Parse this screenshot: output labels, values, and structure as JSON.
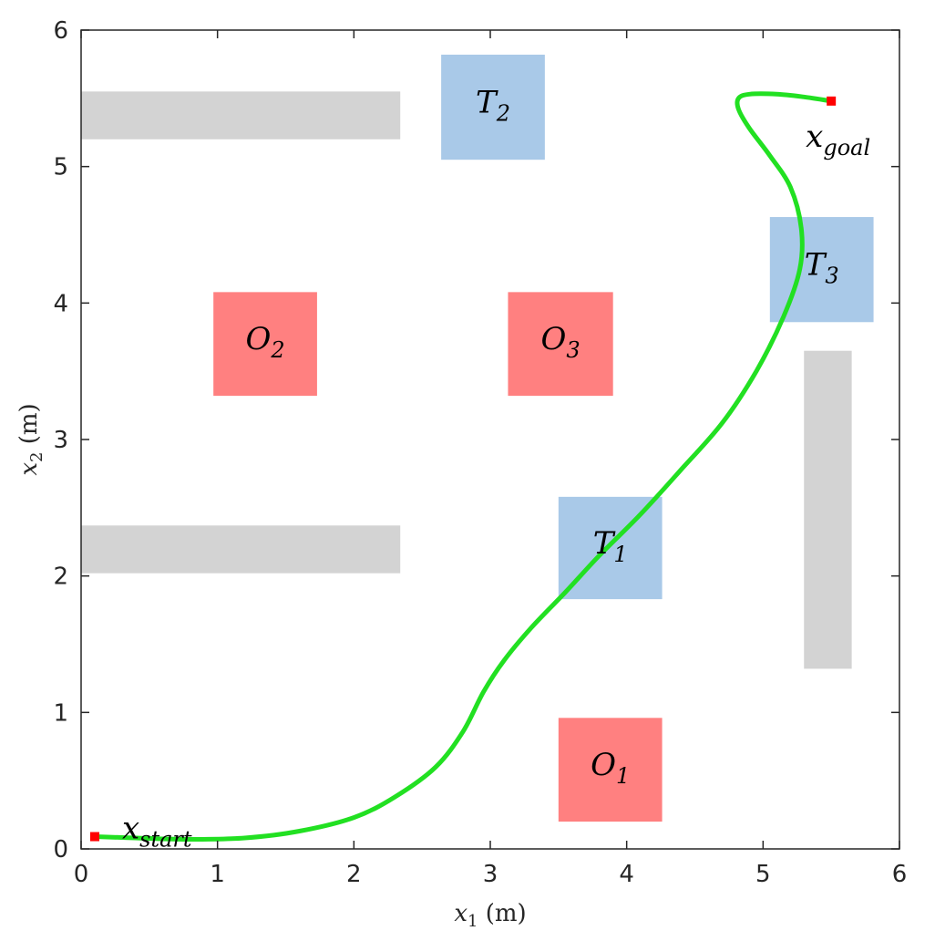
{
  "chart_data": {
    "type": "scatter",
    "title": "",
    "xlabel": "x1 (m)",
    "ylabel": "x2 (m)",
    "xlim": [
      0,
      6
    ],
    "ylim": [
      0,
      6
    ],
    "xticks": [
      0,
      1,
      2,
      3,
      4,
      5,
      6
    ],
    "yticks": [
      0,
      1,
      2,
      3,
      4,
      5,
      6
    ],
    "grid": false,
    "colors": {
      "obstacle": "#ff8080",
      "target": "#a9c9e8",
      "wall": "#d3d3d3",
      "trajectory": "#22e022",
      "endpoint": "#ff0000"
    },
    "walls": [
      {
        "x": [
          0.0,
          2.34
        ],
        "y": [
          5.2,
          5.55
        ]
      },
      {
        "x": [
          0.0,
          2.34
        ],
        "y": [
          2.02,
          2.37
        ]
      },
      {
        "x": [
          5.3,
          5.65
        ],
        "y": [
          1.32,
          3.65
        ]
      }
    ],
    "targets": [
      {
        "label": "T",
        "sub": "1",
        "x": [
          3.5,
          4.26
        ],
        "y": [
          1.83,
          2.58
        ]
      },
      {
        "label": "T",
        "sub": "2",
        "x": [
          2.64,
          3.4
        ],
        "y": [
          5.05,
          5.82
        ]
      },
      {
        "label": "T",
        "sub": "3",
        "x": [
          5.05,
          5.81
        ],
        "y": [
          3.86,
          4.63
        ]
      }
    ],
    "obstacles": [
      {
        "label": "O",
        "sub": "1",
        "x": [
          3.5,
          4.26
        ],
        "y": [
          0.2,
          0.96
        ]
      },
      {
        "label": "O",
        "sub": "2",
        "x": [
          0.97,
          1.73
        ],
        "y": [
          3.32,
          4.08
        ]
      },
      {
        "label": "O",
        "sub": "3",
        "x": [
          3.13,
          3.9
        ],
        "y": [
          3.32,
          4.08
        ]
      }
    ],
    "start": {
      "label": "x",
      "sub": "start",
      "x": 0.1,
      "y": 0.09
    },
    "goal": {
      "label": "x",
      "sub": "goal",
      "x": 5.5,
      "y": 5.48
    },
    "trajectory": {
      "x": [
        0.1,
        0.4,
        0.8,
        1.2,
        1.6,
        2.0,
        2.3,
        2.6,
        2.8,
        2.95,
        3.1,
        3.3,
        3.55,
        3.8,
        4.1,
        4.4,
        4.7,
        4.95,
        5.15,
        5.27,
        5.28,
        5.2,
        5.05,
        4.9,
        4.82,
        4.82,
        4.9,
        5.1,
        5.3,
        5.5
      ],
      "y": [
        0.09,
        0.08,
        0.07,
        0.08,
        0.13,
        0.23,
        0.38,
        0.6,
        0.86,
        1.15,
        1.38,
        1.62,
        1.88,
        2.15,
        2.45,
        2.78,
        3.12,
        3.5,
        3.9,
        4.25,
        4.55,
        4.85,
        5.08,
        5.28,
        5.42,
        5.5,
        5.53,
        5.53,
        5.51,
        5.48
      ]
    }
  }
}
